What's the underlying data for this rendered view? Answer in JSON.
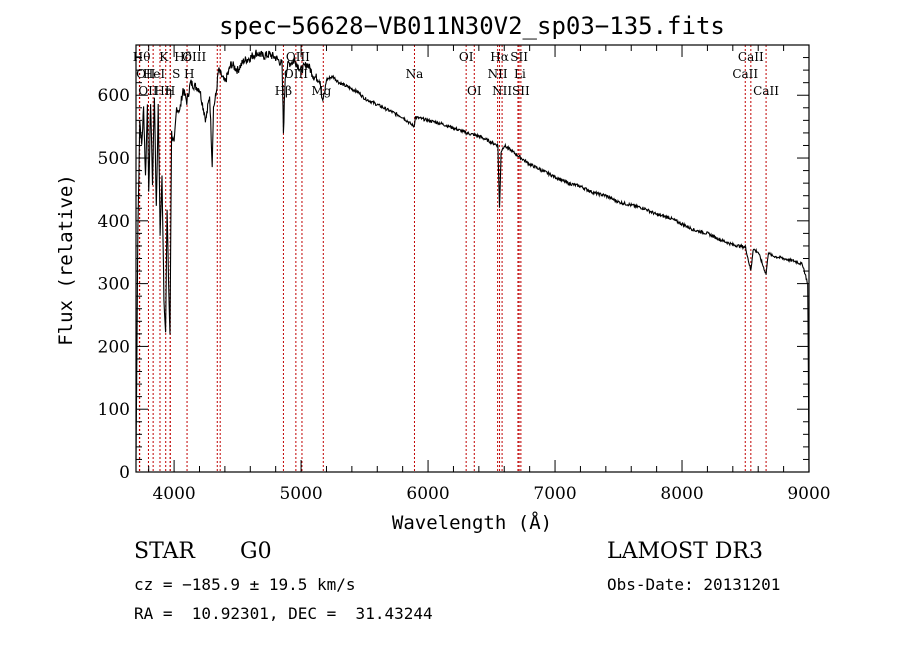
{
  "chart_data": {
    "type": "line",
    "title": "spec−56628−VB011N30V2_sp03−135.fits",
    "xlabel": "Wavelength (Å)",
    "ylabel": "Flux (relative)",
    "xlim": [
      3700,
      9000
    ],
    "ylim": [
      0,
      680
    ],
    "xticks": [
      4000,
      5000,
      6000,
      7000,
      8000,
      9000
    ],
    "yticks": [
      0,
      100,
      200,
      300,
      400,
      500,
      600
    ],
    "series": [
      {
        "name": "flux",
        "x": [
          3700,
          3715,
          3730,
          3745,
          3760,
          3775,
          3790,
          3800,
          3815,
          3830,
          3845,
          3860,
          3875,
          3890,
          3905,
          3920,
          3933,
          3945,
          3960,
          3968,
          3980,
          4000,
          4020,
          4045,
          4070,
          4100,
          4130,
          4160,
          4200,
          4250,
          4280,
          4300,
          4310,
          4330,
          4350,
          4400,
          4450,
          4500,
          4550,
          4600,
          4650,
          4700,
          4750,
          4800,
          4850,
          4861,
          4875,
          4900,
          4950,
          5000,
          5050,
          5100,
          5150,
          5167,
          5183,
          5200,
          5250,
          5300,
          5350,
          5400,
          5450,
          5500,
          5600,
          5700,
          5800,
          5890,
          5900,
          6000,
          6100,
          6200,
          6300,
          6400,
          6500,
          6550,
          6563,
          6575,
          6600,
          6700,
          6800,
          6900,
          7000,
          7100,
          7200,
          7300,
          7400,
          7500,
          7600,
          7700,
          7800,
          7900,
          8000,
          8100,
          8200,
          8300,
          8400,
          8500,
          8542,
          8560,
          8600,
          8662,
          8680,
          8700,
          8800,
          8900,
          8950,
          8990,
          9000
        ],
        "y": [
          20,
          390,
          560,
          520,
          580,
          470,
          590,
          440,
          590,
          460,
          600,
          420,
          580,
          380,
          470,
          280,
          220,
          420,
          270,
          220,
          540,
          520,
          580,
          575,
          610,
          590,
          620,
          615,
          610,
          560,
          600,
          490,
          580,
          600,
          640,
          620,
          650,
          640,
          655,
          660,
          668,
          662,
          665,
          660,
          650,
          540,
          630,
          650,
          655,
          640,
          650,
          630,
          625,
          590,
          600,
          625,
          630,
          620,
          615,
          610,
          605,
          595,
          585,
          575,
          565,
          550,
          565,
          560,
          555,
          548,
          540,
          535,
          525,
          520,
          420,
          510,
          520,
          505,
          490,
          480,
          470,
          460,
          455,
          445,
          440,
          430,
          425,
          420,
          410,
          405,
          395,
          385,
          380,
          370,
          362,
          358,
          320,
          355,
          350,
          315,
          350,
          345,
          340,
          335,
          330,
          300,
          0
        ]
      }
    ],
    "spectral_lines": [
      {
        "label": "Hθ",
        "x": 3798,
        "row": 1,
        "anchor": "end",
        "dx": 2
      },
      {
        "label": "OII",
        "x": 3727,
        "row": 2,
        "anchor": "end",
        "dx": 16
      },
      {
        "label": "OII",
        "x": 3729,
        "row": 3,
        "anchor": "end",
        "dx": 18
      },
      {
        "label": "K",
        "x": 3934,
        "row": 1,
        "anchor": "middle",
        "dx": -2
      },
      {
        "label": "Hη",
        "x": 3835,
        "row": 3,
        "anchor": "middle",
        "dx": 10
      },
      {
        "label": "HeI",
        "x": 3889,
        "row": 2,
        "anchor": "middle",
        "dx": -6
      },
      {
        "label": "S",
        "x": 3970,
        "row": 2,
        "anchor": "middle",
        "dx": 6
      },
      {
        "label": "H",
        "x": 3969,
        "row": 3,
        "anchor": "middle",
        "dx": 0
      },
      {
        "label": "Hδ",
        "x": 4102,
        "row": 1,
        "anchor": "middle",
        "dx": -4
      },
      {
        "label": "OIII",
        "x": 4363,
        "row": 1,
        "anchor": "middle",
        "dx": -26
      },
      {
        "label": "H",
        "x": 4340,
        "row": 2,
        "anchor": "middle",
        "dx": -28
      },
      {
        "label": "Hβ",
        "x": 4861,
        "row": 3,
        "anchor": "middle",
        "dx": 0
      },
      {
        "label": "OIII",
        "x": 4959,
        "row": 1,
        "anchor": "start",
        "dx": -10
      },
      {
        "label": "OIII",
        "x": 5007,
        "row": 2,
        "anchor": "middle",
        "dx": -6
      },
      {
        "label": "Mg",
        "x": 5175,
        "row": 3,
        "anchor": "middle",
        "dx": -2
      },
      {
        "label": "Na",
        "x": 5893,
        "row": 2,
        "anchor": "middle",
        "dx": 0
      },
      {
        "label": "OI",
        "x": 6300,
        "row": 1,
        "anchor": "middle",
        "dx": 0
      },
      {
        "label": "OI",
        "x": 6364,
        "row": 3,
        "anchor": "middle",
        "dx": 0
      },
      {
        "label": "Hα",
        "x": 6563,
        "row": 1,
        "anchor": "middle",
        "dx": 0
      },
      {
        "label": "NII",
        "x": 6548,
        "row": 2,
        "anchor": "middle",
        "dx": 0
      },
      {
        "label": "NII",
        "x": 6583,
        "row": 3,
        "anchor": "middle",
        "dx": 0
      },
      {
        "label": "SII",
        "x": 6717,
        "row": 1,
        "anchor": "middle",
        "dx": 0
      },
      {
        "label": "Li",
        "x": 6708,
        "row": 2,
        "anchor": "middle",
        "dx": 2
      },
      {
        "label": "SII",
        "x": 6731,
        "row": 3,
        "anchor": "middle",
        "dx": 0
      },
      {
        "label": "CaII",
        "x": 8498,
        "row": 2,
        "anchor": "middle",
        "dx": 0
      },
      {
        "label": "CaII",
        "x": 8542,
        "row": 1,
        "anchor": "middle",
        "dx": 0
      },
      {
        "label": "CaII",
        "x": 8662,
        "row": 3,
        "anchor": "middle",
        "dx": 0
      }
    ],
    "line_marker_color": "#c00000"
  },
  "info": {
    "object_class": "STAR",
    "subclass": "G0",
    "survey": "LAMOST DR3",
    "cz_text": "cz = −185.9 ± 19.5 km/s",
    "obs_date_text": "Obs-Date: 20131201",
    "radec_text": "RA =  10.92301, DEC =  31.43244"
  }
}
